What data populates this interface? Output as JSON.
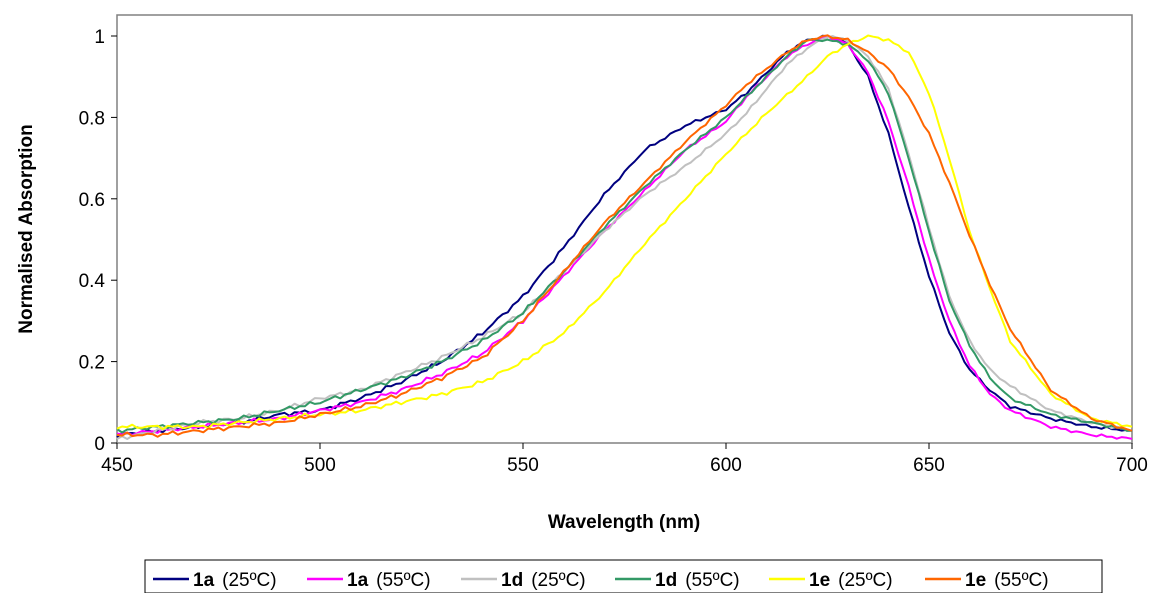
{
  "chart_data": {
    "type": "line",
    "title": "",
    "xlabel": "Wavelength (nm)",
    "ylabel": "Normalised Absorption",
    "xlim": [
      450,
      700
    ],
    "ylim": [
      0,
      1
    ],
    "x_ticks": [
      450,
      500,
      550,
      600,
      650,
      700
    ],
    "y_ticks": [
      0,
      0.2,
      0.4,
      0.6,
      0.8,
      1
    ],
    "x_tick_labels": [
      "450",
      "500",
      "550",
      "600",
      "650",
      "700"
    ],
    "y_tick_labels": [
      "0",
      "0.2",
      "0.4",
      "0.6",
      "0.8",
      "1"
    ],
    "grid": false,
    "legend_position": "bottom",
    "series": [
      {
        "name": "1a (25ºC)",
        "compound": "1a",
        "condition": "(25ºC)",
        "color": "#000080",
        "x": [
          450,
          460,
          470,
          480,
          490,
          500,
          510,
          520,
          530,
          540,
          550,
          560,
          570,
          580,
          590,
          600,
          605,
          610,
          615,
          620,
          625,
          630,
          635,
          640,
          645,
          650,
          655,
          660,
          665,
          670,
          680,
          690,
          700
        ],
        "y": [
          0.02,
          0.03,
          0.04,
          0.05,
          0.07,
          0.08,
          0.11,
          0.15,
          0.2,
          0.27,
          0.36,
          0.48,
          0.61,
          0.72,
          0.78,
          0.82,
          0.86,
          0.91,
          0.96,
          0.99,
          1.0,
          0.98,
          0.9,
          0.76,
          0.58,
          0.41,
          0.27,
          0.18,
          0.13,
          0.09,
          0.06,
          0.04,
          0.03
        ]
      },
      {
        "name": "1a (55ºC)",
        "compound": "1a",
        "condition": "(55ºC)",
        "color": "#FF00FF",
        "x": [
          450,
          460,
          470,
          480,
          490,
          500,
          510,
          520,
          530,
          540,
          550,
          560,
          570,
          580,
          590,
          600,
          605,
          610,
          615,
          620,
          625,
          630,
          635,
          640,
          645,
          650,
          655,
          660,
          665,
          670,
          680,
          690,
          700
        ],
        "y": [
          0.02,
          0.03,
          0.04,
          0.05,
          0.06,
          0.08,
          0.1,
          0.13,
          0.17,
          0.22,
          0.3,
          0.41,
          0.52,
          0.62,
          0.72,
          0.79,
          0.85,
          0.9,
          0.95,
          0.98,
          1.0,
          0.98,
          0.91,
          0.79,
          0.63,
          0.45,
          0.3,
          0.19,
          0.12,
          0.08,
          0.04,
          0.02,
          0.01
        ]
      },
      {
        "name": "1d (25ºC)",
        "compound": "1d",
        "condition": "(25ºC)",
        "color": "#C0C0C0",
        "x": [
          450,
          460,
          470,
          480,
          490,
          500,
          510,
          520,
          530,
          540,
          550,
          560,
          570,
          580,
          590,
          600,
          605,
          610,
          615,
          620,
          625,
          630,
          635,
          640,
          645,
          650,
          655,
          660,
          665,
          670,
          680,
          690,
          700
        ],
        "y": [
          0.01,
          0.03,
          0.05,
          0.06,
          0.08,
          0.11,
          0.13,
          0.17,
          0.21,
          0.26,
          0.32,
          0.42,
          0.52,
          0.61,
          0.68,
          0.76,
          0.81,
          0.87,
          0.93,
          0.97,
          1.0,
          0.99,
          0.95,
          0.87,
          0.71,
          0.53,
          0.36,
          0.25,
          0.18,
          0.14,
          0.08,
          0.05,
          0.03
        ]
      },
      {
        "name": "1d (55ºC)",
        "compound": "1d",
        "condition": "(55ºC)",
        "color": "#339966",
        "x": [
          450,
          460,
          470,
          480,
          490,
          500,
          510,
          520,
          530,
          540,
          550,
          560,
          570,
          580,
          590,
          600,
          605,
          610,
          615,
          620,
          625,
          630,
          635,
          640,
          645,
          650,
          655,
          660,
          665,
          670,
          680,
          690,
          700
        ],
        "y": [
          0.03,
          0.04,
          0.05,
          0.06,
          0.08,
          0.1,
          0.13,
          0.16,
          0.2,
          0.25,
          0.32,
          0.42,
          0.53,
          0.63,
          0.72,
          0.8,
          0.85,
          0.9,
          0.95,
          0.99,
          0.99,
          0.98,
          0.94,
          0.86,
          0.7,
          0.52,
          0.35,
          0.24,
          0.16,
          0.11,
          0.07,
          0.05,
          0.03
        ]
      },
      {
        "name": "1e (25ºC)",
        "compound": "1e",
        "condition": "(25ºC)",
        "color": "#FFFF00",
        "x": [
          450,
          460,
          470,
          480,
          490,
          500,
          510,
          520,
          530,
          540,
          550,
          560,
          570,
          580,
          590,
          600,
          610,
          620,
          625,
          630,
          635,
          640,
          645,
          650,
          655,
          660,
          665,
          670,
          680,
          690,
          700
        ],
        "y": [
          0.04,
          0.04,
          0.04,
          0.05,
          0.06,
          0.07,
          0.08,
          0.1,
          0.12,
          0.15,
          0.2,
          0.27,
          0.37,
          0.49,
          0.6,
          0.71,
          0.81,
          0.9,
          0.95,
          0.98,
          1.0,
          0.99,
          0.96,
          0.86,
          0.7,
          0.52,
          0.38,
          0.25,
          0.12,
          0.06,
          0.04
        ]
      },
      {
        "name": "1e (55ºC)",
        "compound": "1e",
        "condition": "(55ºC)",
        "color": "#FF6600",
        "x": [
          450,
          460,
          470,
          480,
          490,
          500,
          510,
          520,
          530,
          540,
          550,
          560,
          570,
          580,
          590,
          600,
          605,
          610,
          615,
          620,
          625,
          630,
          635,
          640,
          645,
          650,
          655,
          660,
          665,
          670,
          680,
          690,
          700
        ],
        "y": [
          0.02,
          0.02,
          0.03,
          0.04,
          0.05,
          0.07,
          0.09,
          0.12,
          0.16,
          0.21,
          0.3,
          0.42,
          0.54,
          0.64,
          0.74,
          0.83,
          0.88,
          0.92,
          0.96,
          0.99,
          1.0,
          0.99,
          0.96,
          0.92,
          0.85,
          0.76,
          0.64,
          0.51,
          0.39,
          0.28,
          0.13,
          0.06,
          0.03
        ]
      }
    ]
  }
}
